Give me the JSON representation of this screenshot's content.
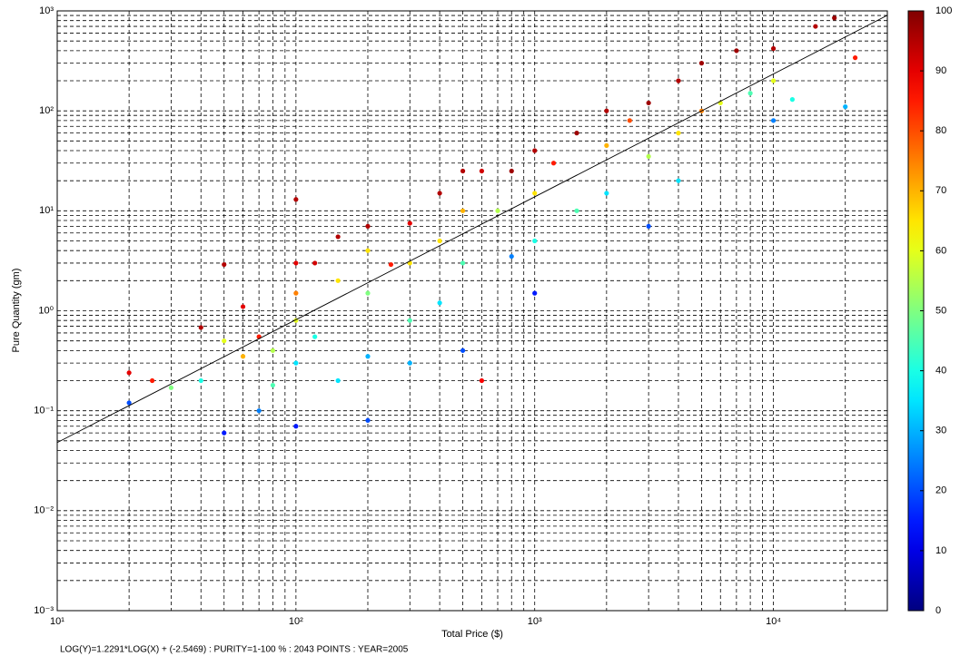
{
  "chart_data": {
    "type": "scatter",
    "x_label": "Total Price ($)",
    "y_label": "Pure Quantity (gm)",
    "footer": "LOG(Y)=1.2291*LOG(X) + (-2.5469) : PURITY=1-100 % : 2043 POINTS : YEAR=2005",
    "xscale": "log",
    "yscale": "log",
    "grid": true,
    "xlim": [
      10,
      30000
    ],
    "ylim": [
      0.001,
      1000
    ],
    "xticks": [
      {
        "value": 10,
        "label": "10¹"
      },
      {
        "value": 100,
        "label": "10²"
      },
      {
        "value": 1000,
        "label": "10³"
      },
      {
        "value": 10000,
        "label": "10⁴"
      }
    ],
    "yticks": [
      {
        "value": 0.001,
        "label": "10⁻³"
      },
      {
        "value": 0.01,
        "label": "10⁻²"
      },
      {
        "value": 0.1,
        "label": "10⁻¹"
      },
      {
        "value": 1,
        "label": "10⁰"
      },
      {
        "value": 10,
        "label": "10¹"
      },
      {
        "value": 100,
        "label": "10²"
      },
      {
        "value": 1000,
        "label": "10³"
      }
    ],
    "colorbar": {
      "colormap": "jet",
      "lim": [
        0,
        100
      ],
      "ticks": [
        0,
        10,
        20,
        30,
        40,
        50,
        60,
        70,
        80,
        90,
        100
      ]
    },
    "fit_line": {
      "color": "#000000",
      "x": [
        10,
        30000
      ],
      "y": [
        0.048,
        903
      ]
    },
    "series": [
      {
        "x": [
          20,
          20,
          25,
          30,
          40,
          40,
          50,
          50,
          50,
          60,
          60,
          70,
          70,
          80,
          80,
          100,
          100,
          100,
          100,
          100,
          100,
          120,
          120,
          150,
          150,
          150,
          200,
          200,
          200,
          200,
          200,
          250,
          300,
          300,
          300,
          300,
          400,
          400,
          400,
          500,
          500,
          500,
          500,
          600,
          600,
          700,
          800,
          800,
          1000,
          1000,
          1000,
          1000,
          1200,
          1500,
          1500,
          2000,
          2000,
          2000,
          2500,
          3000,
          3000,
          3000,
          4000,
          4000,
          4000,
          5000,
          5000,
          6000,
          7000,
          8000,
          10000,
          10000,
          10000,
          12000,
          15000,
          18000,
          20000,
          22000
        ],
        "y": [
          0.24,
          0.12,
          0.2,
          0.17,
          0.68,
          0.2,
          2.9,
          0.06,
          0.5,
          1.1,
          0.35,
          0.1,
          0.55,
          0.4,
          0.18,
          13,
          3,
          1.5,
          0.8,
          0.3,
          0.07,
          3,
          0.55,
          5.5,
          2,
          0.2,
          7,
          4,
          1.5,
          0.35,
          0.08,
          2.9,
          7.5,
          3,
          0.8,
          0.3,
          15,
          5,
          1.2,
          25,
          10,
          3,
          0.4,
          25,
          0.2,
          10,
          25,
          3.5,
          40,
          15,
          5,
          1.5,
          30,
          60,
          10,
          100,
          45,
          15,
          80,
          120,
          35,
          7,
          200,
          60,
          20,
          300,
          100,
          120,
          400,
          150,
          420,
          80,
          200,
          130,
          700,
          850,
          110,
          340
        ],
        "purity": [
          90,
          20,
          85,
          50,
          95,
          40,
          95,
          15,
          60,
          90,
          70,
          25,
          85,
          55,
          45,
          95,
          90,
          75,
          60,
          35,
          15,
          92,
          40,
          95,
          65,
          35,
          95,
          65,
          50,
          30,
          20,
          85,
          90,
          65,
          45,
          30,
          95,
          65,
          35,
          95,
          70,
          45,
          20,
          92,
          88,
          55,
          97,
          25,
          95,
          65,
          40,
          15,
          85,
          97,
          45,
          95,
          70,
          35,
          80,
          97,
          55,
          20,
          95,
          65,
          35,
          97,
          75,
          60,
          97,
          45,
          95,
          25,
          60,
          40,
          95,
          97,
          30,
          85
        ]
      }
    ]
  }
}
